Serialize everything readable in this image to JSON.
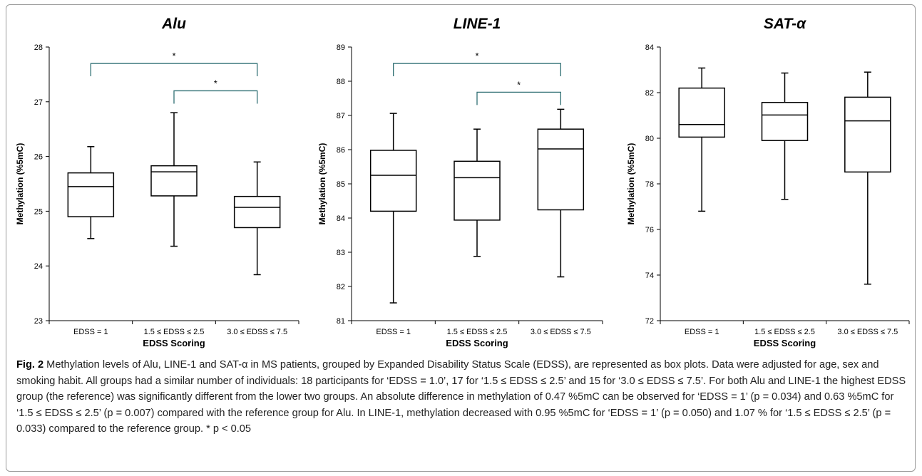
{
  "chart_data": [
    {
      "type": "box",
      "title": "Alu",
      "xlabel": "EDSS Scoring",
      "ylabel": "Methylation (%5mC)",
      "ylim": [
        23,
        28
      ],
      "yticks": [
        23,
        24,
        25,
        26,
        27,
        28
      ],
      "categories": [
        "EDSS = 1",
        "1.5 ≤ EDSS ≤ 2.5",
        "3.0 ≤ EDSS ≤ 7.5"
      ],
      "boxes": [
        {
          "min": 24.5,
          "q1": 24.9,
          "median": 25.45,
          "q3": 25.7,
          "max": 26.18
        },
        {
          "min": 24.36,
          "q1": 25.28,
          "median": 25.72,
          "q3": 25.83,
          "max": 26.8
        },
        {
          "min": 23.84,
          "q1": 24.7,
          "median": 25.07,
          "q3": 25.27,
          "max": 25.9
        }
      ],
      "brackets": [
        {
          "from": 0,
          "to": 2,
          "y": 27.7,
          "label": "*"
        },
        {
          "from": 1,
          "to": 2,
          "y": 27.2,
          "label": "*"
        }
      ]
    },
    {
      "type": "box",
      "title": "LINE-1",
      "xlabel": "EDSS Scoring",
      "ylabel": "Methylation (%5mC)",
      "ylim": [
        81,
        89
      ],
      "yticks": [
        81,
        82,
        83,
        84,
        85,
        86,
        87,
        88,
        89
      ],
      "categories": [
        "EDSS = 1",
        "1.5 ≤ EDSS ≤ 2.5",
        "3.0 ≤ EDSS ≤ 7.5"
      ],
      "boxes": [
        {
          "min": 81.52,
          "q1": 84.2,
          "median": 85.25,
          "q3": 85.98,
          "max": 87.06
        },
        {
          "min": 82.88,
          "q1": 83.94,
          "median": 85.18,
          "q3": 85.66,
          "max": 86.6
        },
        {
          "min": 82.28,
          "q1": 84.24,
          "median": 86.02,
          "q3": 86.6,
          "max": 87.18
        }
      ],
      "brackets": [
        {
          "from": 0,
          "to": 2,
          "y": 88.52,
          "label": "*"
        },
        {
          "from": 1,
          "to": 2,
          "y": 87.68,
          "label": "*"
        }
      ]
    },
    {
      "type": "box",
      "title": "SAT-α",
      "xlabel": "EDSS Scoring",
      "ylabel": "Methylation (%5mC)",
      "ylim": [
        72,
        84
      ],
      "yticks": [
        72,
        74,
        76,
        78,
        80,
        82,
        84
      ],
      "categories": [
        "EDSS = 1",
        "1.5 ≤ EDSS ≤ 2.5",
        "3.0 ≤ EDSS ≤ 7.5"
      ],
      "boxes": [
        {
          "min": 76.8,
          "q1": 80.05,
          "median": 80.6,
          "q3": 82.2,
          "max": 83.08
        },
        {
          "min": 77.32,
          "q1": 79.9,
          "median": 81.02,
          "q3": 81.57,
          "max": 82.86
        },
        {
          "min": 73.6,
          "q1": 78.52,
          "median": 80.76,
          "q3": 81.8,
          "max": 82.9
        }
      ],
      "brackets": []
    }
  ],
  "caption": {
    "fig_label": "Fig. 2",
    "text": " Methylation levels of Alu, LINE-1 and SAT-α in MS patients, grouped by Expanded Disability Status Scale (EDSS), are represented as box plots. Data were adjusted for age, sex and smoking habit. All groups had a similar number of individuals: 18 participants for ‘EDSS = 1.0’, 17 for ‘1.5 ≤ EDSS ≤ 2.5’ and 15 for ‘3.0 ≤ EDSS ≤ 7.5’. For both Alu and LINE-1 the highest EDSS group (the reference) was significantly different from the lower two groups. An absolute difference in methylation of 0.47 %5mC can be observed for ‘EDSS = 1’ (p = 0.034) and 0.63 %5mC for ‘1.5 ≤ EDSS ≤ 2.5’ (p = 0.007) compared with the reference group for Alu. In LINE-1, methylation decreased with 0.95 %5mC for ‘EDSS = 1’ (p = 0.050) and 1.07 % for ‘1.5 ≤ EDSS ≤ 2.5’ (p = 0.033) compared to the reference group. * p < 0.05"
  },
  "colors": {
    "axis": "#000000",
    "box": "#000000",
    "bracket": "#2f6f73",
    "frame": "#9a9a9a"
  }
}
